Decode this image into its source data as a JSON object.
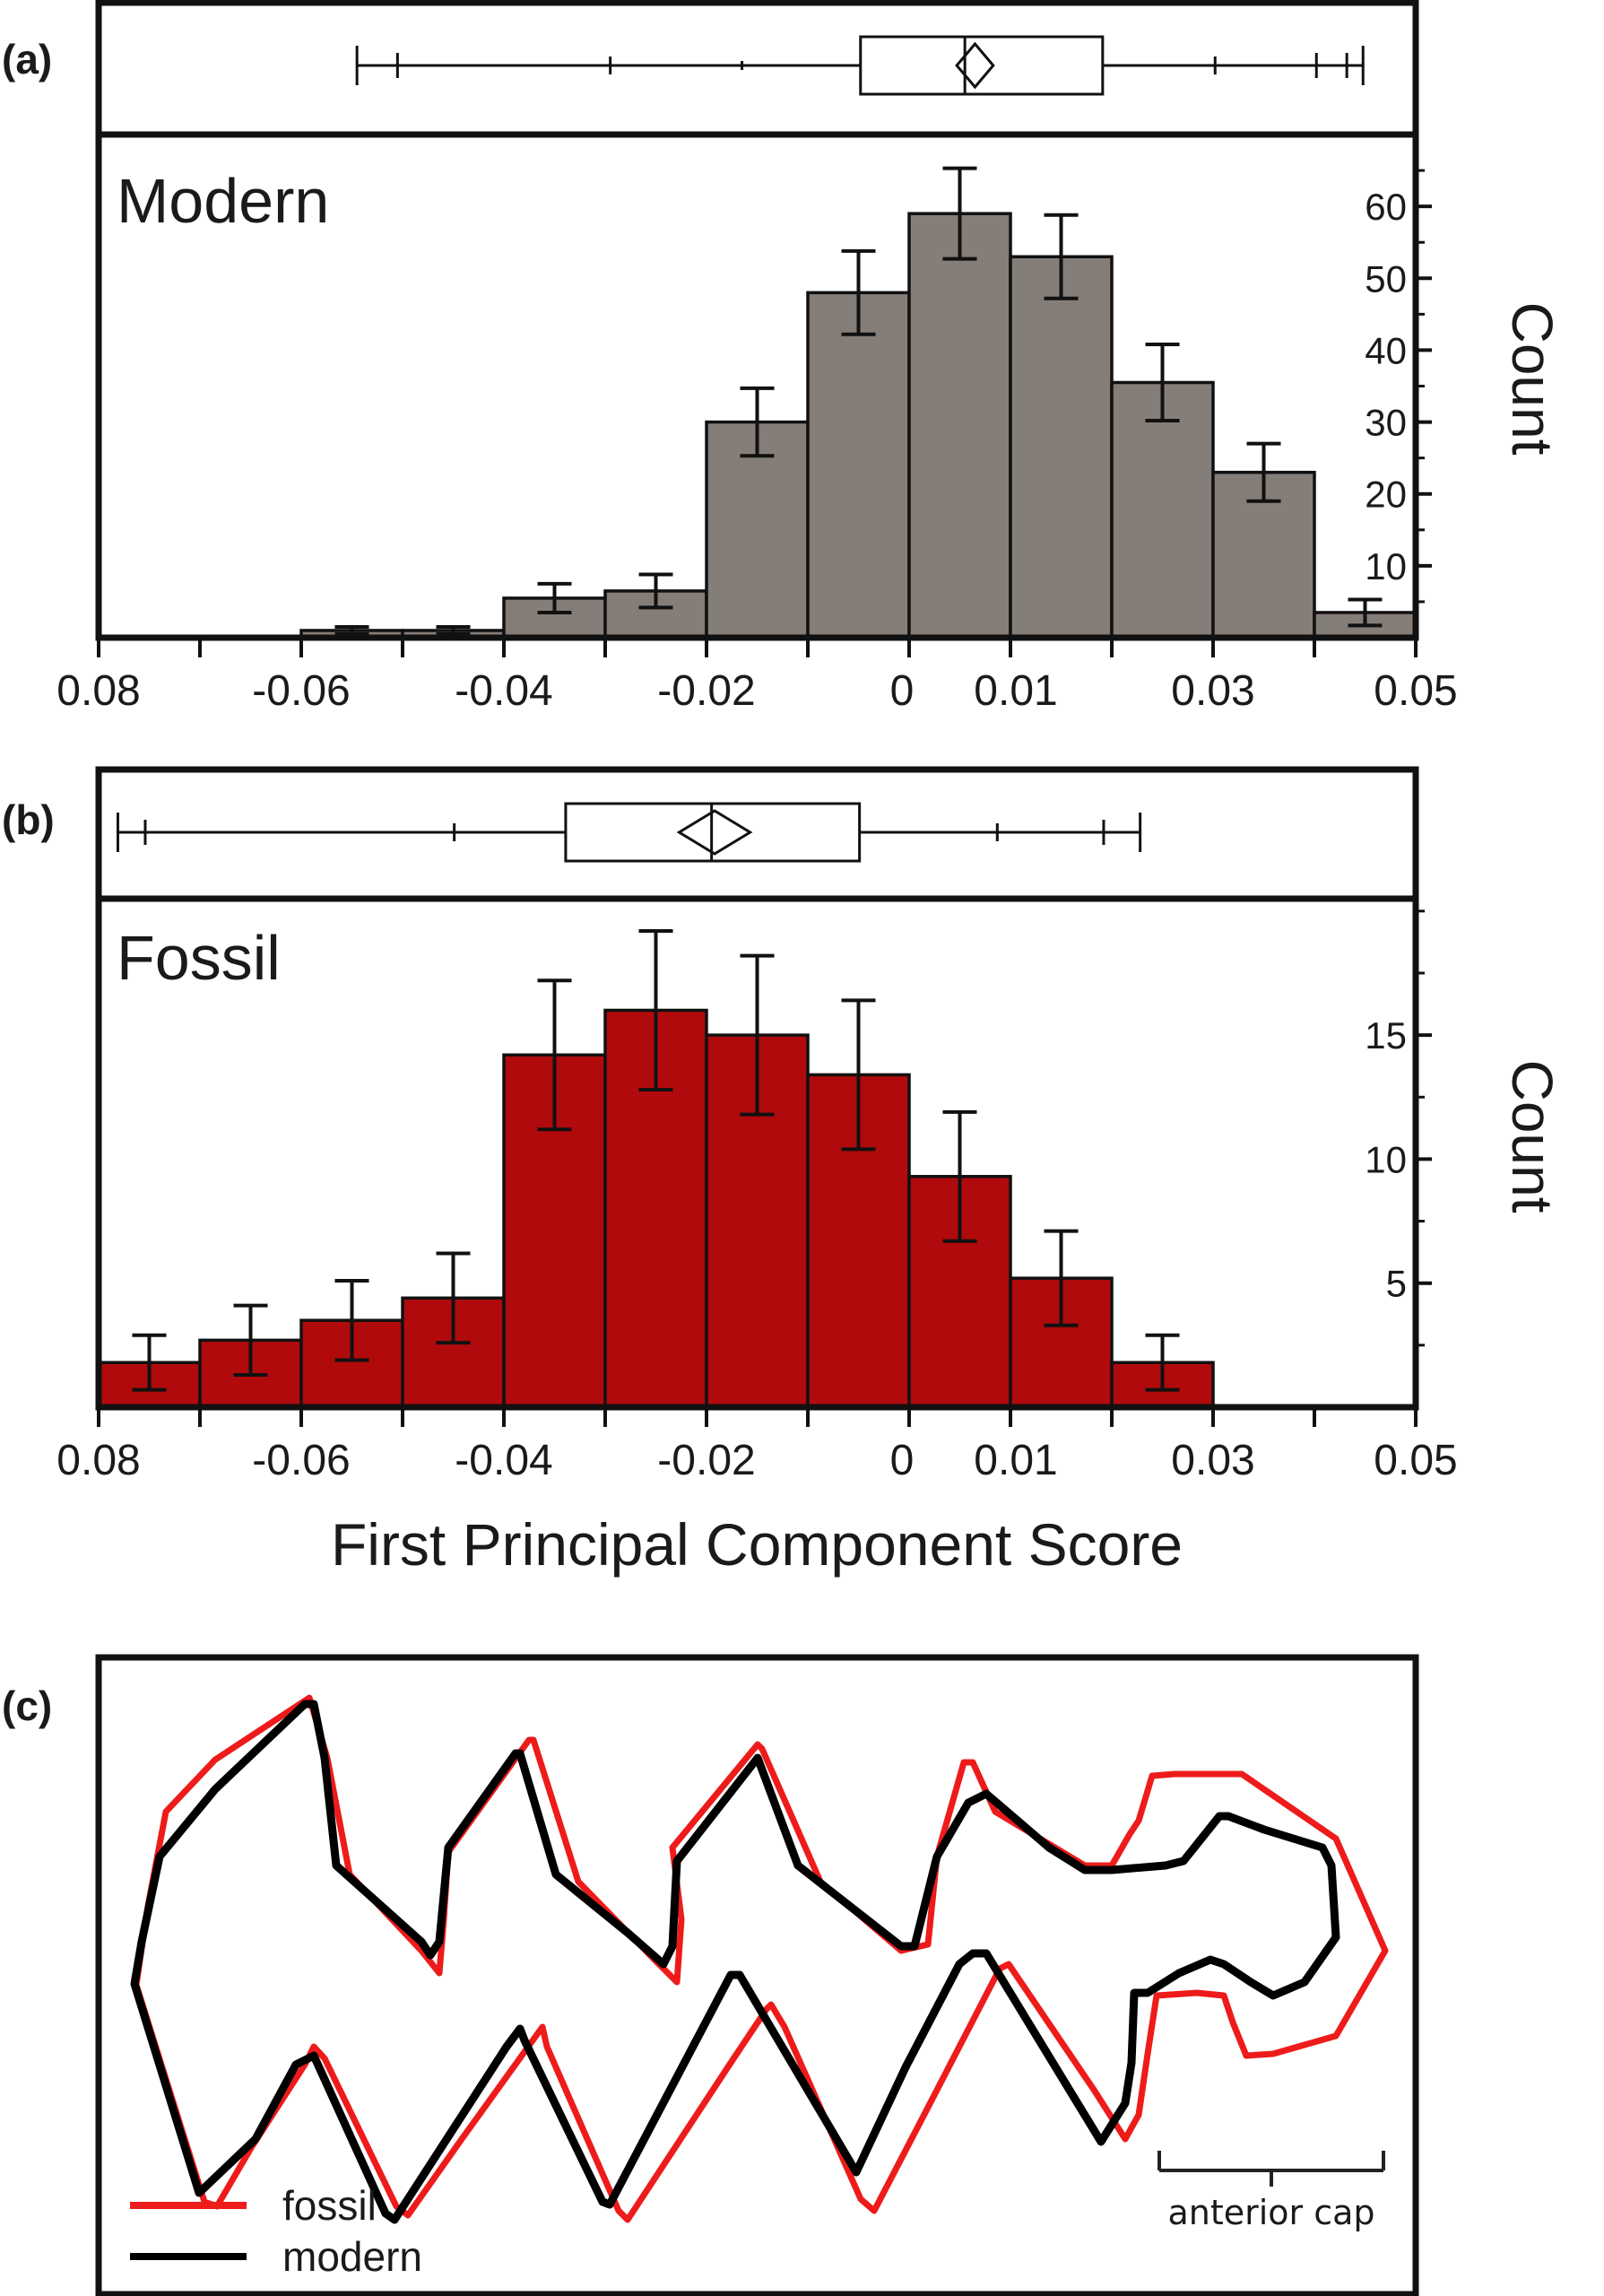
{
  "colors": {
    "modern_fill": "#857d78",
    "fossil_fill": "#b10a0c",
    "fossil_line": "#ee1b1b",
    "modern_line": "#000000",
    "frame": "#111111"
  },
  "panel_a": {
    "letter": "(a)",
    "group_label": "Modern",
    "count_label": "Count",
    "x_tick_labels": [
      "0.08",
      "-0.06",
      "-0.04",
      "-0.02",
      "0",
      "0.01",
      "0.03",
      "0.05"
    ]
  },
  "panel_b": {
    "letter": "(b)",
    "group_label": "Fossil",
    "count_label": "Count",
    "x_tick_labels": [
      "0.08",
      "-0.06",
      "-0.04",
      "-0.02",
      "0",
      "0.01",
      "0.03",
      "0.05"
    ],
    "x_axis_title": "First Principal Component Score"
  },
  "panel_c": {
    "letter": "(c)",
    "legend": [
      {
        "label": "fossil",
        "color": "#ee1b1b"
      },
      {
        "label": "modern",
        "color": "#000000"
      }
    ],
    "bracket_label": "anterior cap"
  },
  "chart_data": [
    {
      "type": "bar",
      "panel": "a",
      "title": "Modern",
      "xlabel": "",
      "ylabel": "Count",
      "xlim": [
        -0.08,
        0.05
      ],
      "ylim": [
        0,
        70
      ],
      "y_ticks": [
        10,
        20,
        30,
        40,
        50,
        60
      ],
      "bin_width": 0.01,
      "bins": [
        {
          "x0": -0.06,
          "x1": -0.05,
          "count": 1,
          "err": 0.5
        },
        {
          "x0": -0.05,
          "x1": -0.04,
          "count": 1,
          "err": 0.5
        },
        {
          "x0": -0.04,
          "x1": -0.03,
          "count": 5.5,
          "err": 2
        },
        {
          "x0": -0.03,
          "x1": -0.02,
          "count": 6.5,
          "err": 2.3
        },
        {
          "x0": -0.02,
          "x1": -0.01,
          "count": 30,
          "err": 4.7
        },
        {
          "x0": -0.01,
          "x1": 0.0,
          "count": 48,
          "err": 5.8
        },
        {
          "x0": 0.0,
          "x1": 0.01,
          "count": 59,
          "err": 6.3
        },
        {
          "x0": 0.01,
          "x1": 0.02,
          "count": 53,
          "err": 5.8
        },
        {
          "x0": 0.02,
          "x1": 0.03,
          "count": 35.5,
          "err": 5.3
        },
        {
          "x0": 0.03,
          "x1": 0.04,
          "count": 23,
          "err": 4
        },
        {
          "x0": 0.04,
          "x1": 0.05,
          "count": 3.5,
          "err": 1.8
        }
      ],
      "box_plot": {
        "whisker_min": -0.0545,
        "p_low_outer": -0.0505,
        "p_low_mid": -0.0295,
        "p_low_inner": -0.0165,
        "q1": -0.0048,
        "median": 0.0055,
        "mean": 0.0065,
        "mean_ci_half": 0.0018,
        "q3": 0.0191,
        "p_high_inner": 0.0302,
        "p_high_outer": 0.0402,
        "whisker_max": 0.0448,
        "max_tick": 0.0432
      }
    },
    {
      "type": "bar",
      "panel": "b",
      "title": "Fossil",
      "xlabel": "First Principal Component Score",
      "ylabel": "Count",
      "xlim": [
        -0.08,
        0.05
      ],
      "ylim": [
        0,
        20.5
      ],
      "y_ticks": [
        5,
        10,
        15
      ],
      "bin_width": 0.01,
      "bins": [
        {
          "x0": -0.08,
          "x1": -0.07,
          "count": 1.8,
          "err": 1.1
        },
        {
          "x0": -0.07,
          "x1": -0.06,
          "count": 2.7,
          "err": 1.4
        },
        {
          "x0": -0.06,
          "x1": -0.05,
          "count": 3.5,
          "err": 1.6
        },
        {
          "x0": -0.05,
          "x1": -0.04,
          "count": 4.4,
          "err": 1.8
        },
        {
          "x0": -0.04,
          "x1": -0.03,
          "count": 14.2,
          "err": 3
        },
        {
          "x0": -0.03,
          "x1": -0.02,
          "count": 16,
          "err": 3.2
        },
        {
          "x0": -0.02,
          "x1": -0.01,
          "count": 15,
          "err": 3.2
        },
        {
          "x0": -0.01,
          "x1": 0.0,
          "count": 13.4,
          "err": 3
        },
        {
          "x0": 0.0,
          "x1": 0.01,
          "count": 9.3,
          "err": 2.6
        },
        {
          "x0": 0.01,
          "x1": 0.02,
          "count": 5.2,
          "err": 1.9
        },
        {
          "x0": 0.02,
          "x1": 0.03,
          "count": 1.8,
          "err": 1.1
        }
      ],
      "box_plot": {
        "whisker_min": -0.0781,
        "p_low_outer": -0.0754,
        "p_low_mid": -0.0449,
        "q1": -0.0339,
        "median": -0.0195,
        "mean": -0.0192,
        "mean_ci_half": 0.0035,
        "q3": -0.0049,
        "p_high_inner": 0.0087,
        "p_high_outer": 0.0192,
        "whisker_max": 0.0228
      }
    }
  ]
}
